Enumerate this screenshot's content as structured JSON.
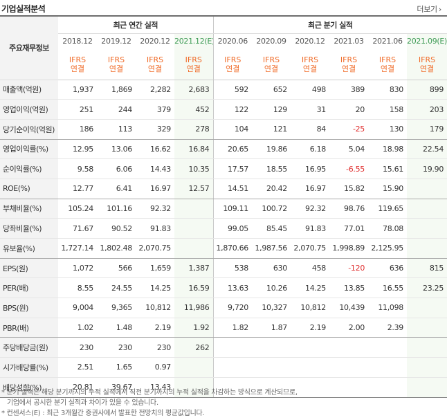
{
  "header": {
    "title": "기업실적분석",
    "more_label": "더보기",
    "more_arrow": "›"
  },
  "table": {
    "row_header_label": "주요재무정보",
    "annual_group": "최근 연간 실적",
    "quarter_group": "최근 분기 실적",
    "annual_periods": [
      "2018.12",
      "2019.12",
      "2020.12",
      "2021.12(E)"
    ],
    "quarter_periods": [
      "2020.06",
      "2020.09",
      "2020.12",
      "2021.03",
      "2021.06",
      "2021.09(E)"
    ],
    "ifrs_line1": "IFRS",
    "ifrs_line2": "연결",
    "rows": [
      {
        "label": "매출액(억원)",
        "values": [
          "1,937",
          "1,869",
          "2,282",
          "2,683",
          "592",
          "652",
          "498",
          "389",
          "830",
          "899"
        ]
      },
      {
        "label": "영업이익(억원)",
        "values": [
          "251",
          "244",
          "379",
          "452",
          "122",
          "129",
          "31",
          "20",
          "158",
          "203"
        ]
      },
      {
        "label": "당기순이익(억원)",
        "values": [
          "186",
          "113",
          "329",
          "278",
          "104",
          "121",
          "84",
          "-25",
          "130",
          "179"
        ]
      },
      {
        "label": "영업이익률(%)",
        "values": [
          "12.95",
          "13.06",
          "16.62",
          "16.84",
          "20.65",
          "19.86",
          "6.18",
          "5.04",
          "18.98",
          "22.54"
        ]
      },
      {
        "label": "순이익률(%)",
        "values": [
          "9.58",
          "6.06",
          "14.43",
          "10.35",
          "17.57",
          "18.55",
          "16.95",
          "-6.55",
          "15.61",
          "19.90"
        ]
      },
      {
        "label": "ROE(%)",
        "values": [
          "12.77",
          "6.41",
          "16.97",
          "12.57",
          "14.51",
          "20.42",
          "16.97",
          "15.82",
          "15.90",
          ""
        ]
      },
      {
        "label": "부채비율(%)",
        "values": [
          "105.24",
          "101.16",
          "92.32",
          "",
          "109.11",
          "100.72",
          "92.32",
          "98.76",
          "119.65",
          ""
        ]
      },
      {
        "label": "당좌비율(%)",
        "values": [
          "71.67",
          "90.52",
          "91.83",
          "",
          "99.05",
          "85.45",
          "91.83",
          "77.01",
          "78.08",
          ""
        ]
      },
      {
        "label": "유보율(%)",
        "values": [
          "1,727.14",
          "1,802.48",
          "2,070.75",
          "",
          "1,870.66",
          "1,987.56",
          "2,070.75",
          "1,998.89",
          "2,125.95",
          ""
        ]
      },
      {
        "label": "EPS(원)",
        "values": [
          "1,072",
          "566",
          "1,659",
          "1,387",
          "538",
          "630",
          "458",
          "-120",
          "636",
          "815"
        ]
      },
      {
        "label": "PER(배)",
        "values": [
          "8.55",
          "24.55",
          "14.25",
          "16.59",
          "13.63",
          "10.26",
          "14.25",
          "13.85",
          "16.55",
          "23.25"
        ]
      },
      {
        "label": "BPS(원)",
        "values": [
          "9,004",
          "9,365",
          "10,812",
          "11,986",
          "9,720",
          "10,327",
          "10,812",
          "10,439",
          "11,098",
          ""
        ]
      },
      {
        "label": "PBR(배)",
        "values": [
          "1.02",
          "1.48",
          "2.19",
          "1.92",
          "1.82",
          "1.87",
          "2.19",
          "2.00",
          "2.39",
          ""
        ]
      },
      {
        "label": "주당배당금(원)",
        "values": [
          "230",
          "230",
          "230",
          "262",
          "",
          "",
          "",
          "",
          "",
          ""
        ]
      },
      {
        "label": "시가배당률(%)",
        "values": [
          "2.51",
          "1.65",
          "0.97",
          "",
          "",
          "",
          "",
          "",
          "",
          ""
        ]
      },
      {
        "label": "배당성향(%)",
        "values": [
          "20.81",
          "39.67",
          "13.43",
          "",
          "",
          "",
          "",
          "",
          "",
          ""
        ]
      }
    ]
  },
  "notes": [
    "* 분기 실적은 해당 분기까지의 누적 실적에서 직전 분기까지의 누적 실적을 차감하는 방식으로 계산되므로,",
    "기업에서 공시한 분기 실적과 차이가 있을 수 있습니다.",
    "* 컨센서스(E) : 최근 3개월간 증권사에서 발표한 전망치의 평균값입니다."
  ],
  "colors": {
    "ifrs": "#f06b28",
    "negative": "#e03030",
    "estimate": "#3e9b55"
  }
}
